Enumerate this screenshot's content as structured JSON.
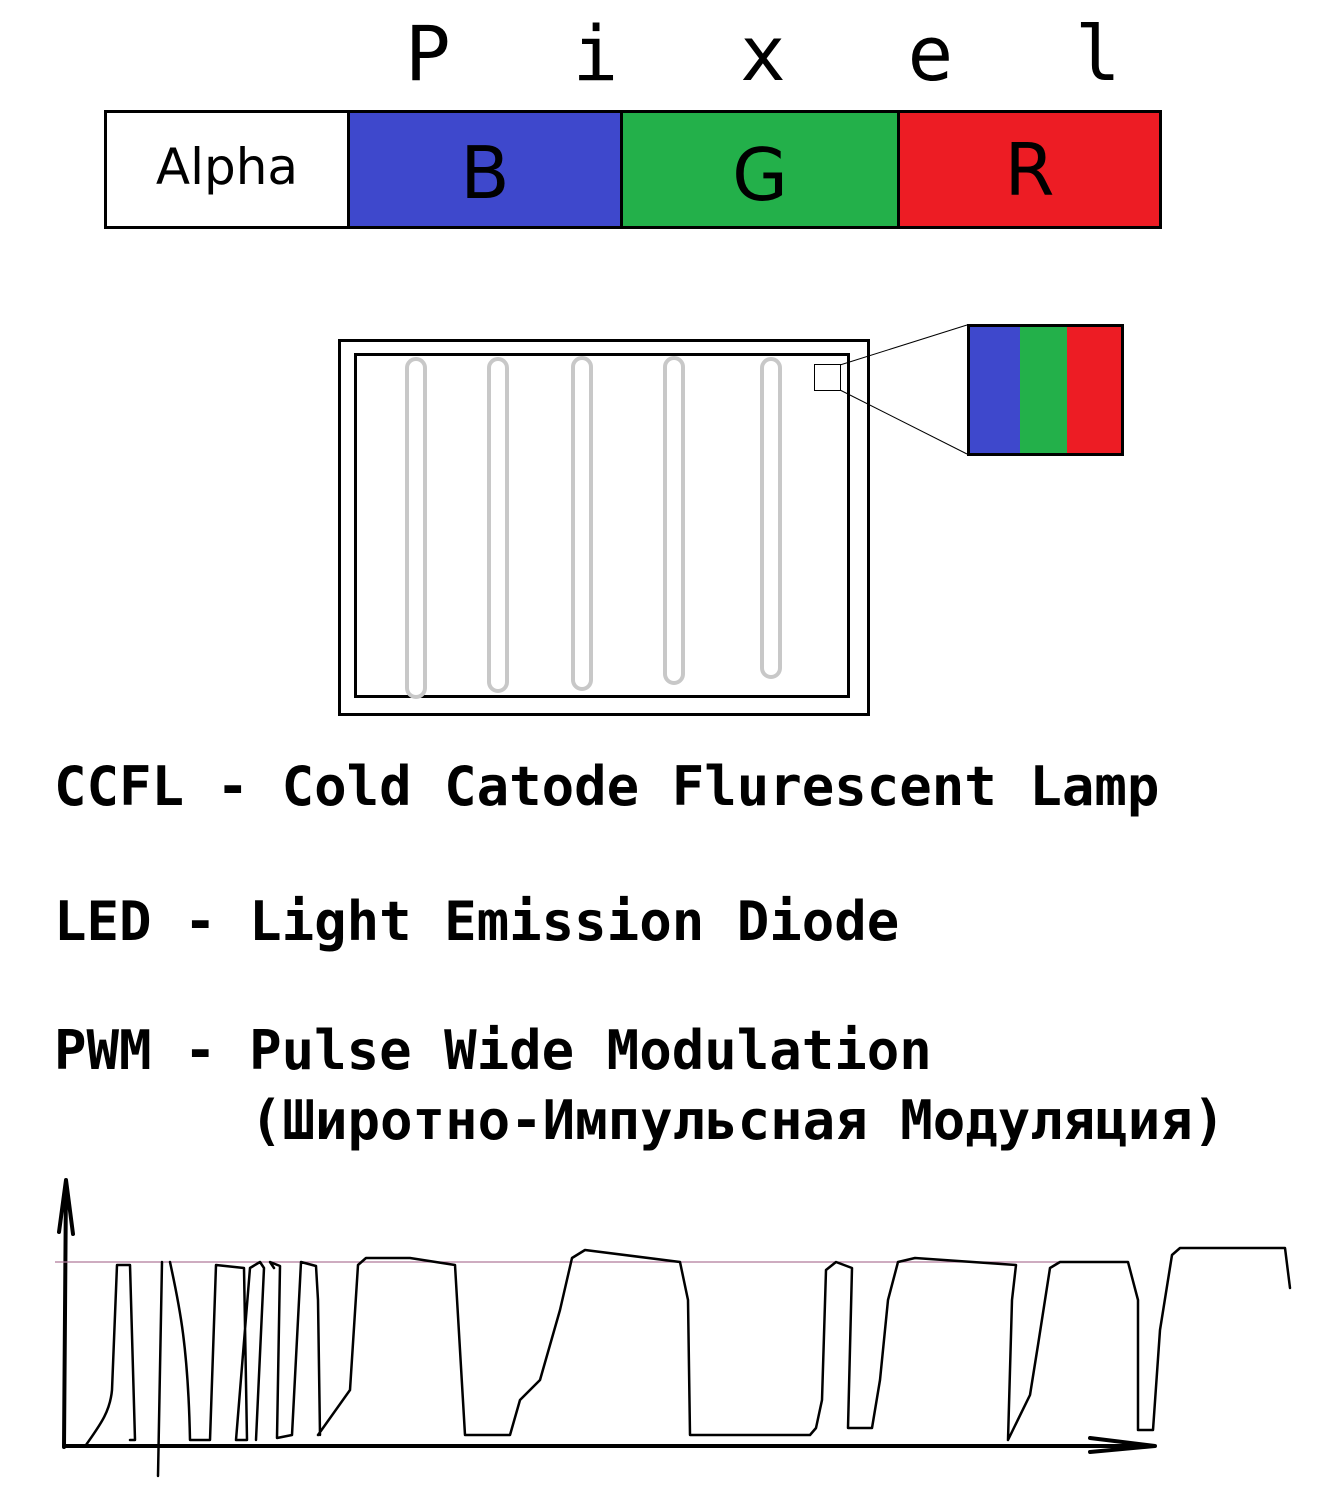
{
  "title": "P i x e l",
  "pixel_bar": [
    {
      "label": "Alpha",
      "color": "#ffffff"
    },
    {
      "label": "B",
      "color": "#3e48cc"
    },
    {
      "label": "G",
      "color": "#23b04a"
    },
    {
      "label": "R",
      "color": "#ed1c24"
    }
  ],
  "zoom_colors": {
    "b": "#3e48cc",
    "g": "#23b04a",
    "r": "#ed1c24"
  },
  "lamp_color": "#c8c8c8",
  "definitions": {
    "ccfl": "CCFL - Cold Catode Flurescent Lamp",
    "led": "LED - Light Emission Diode",
    "pwm": "PWM - Pulse Wide Modulation",
    "pwm_ru": "(Широтно-Импульсная Модуляция)"
  },
  "pwm_reference_line_color": "#b07a9a"
}
